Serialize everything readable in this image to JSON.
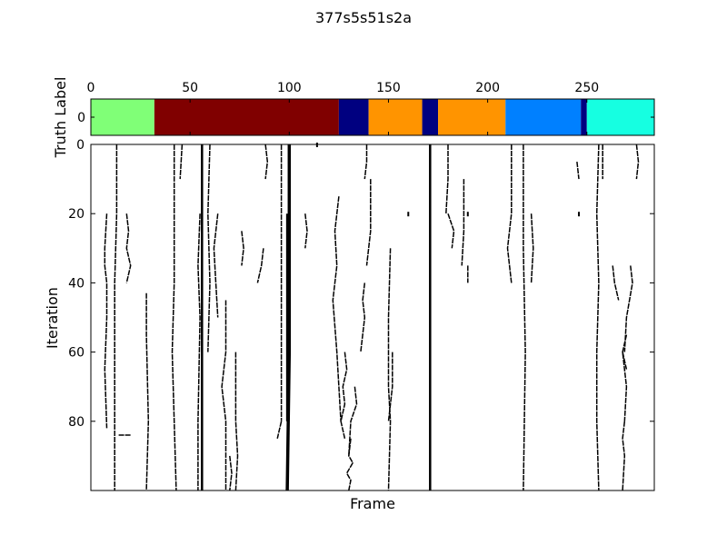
{
  "chart_data": [
    {
      "type": "bar",
      "title": "377s5s51s2a",
      "ylabel": "Truth Label",
      "xlim": [
        0,
        284
      ],
      "x_ticks": [
        0,
        50,
        100,
        150,
        200,
        250
      ],
      "y_ticks": [
        0
      ],
      "segments": [
        {
          "start": 0,
          "end": 32,
          "color": "#80ff77"
        },
        {
          "start": 32,
          "end": 125,
          "color": "#800000"
        },
        {
          "start": 125,
          "end": 140,
          "color": "#000080"
        },
        {
          "start": 140,
          "end": 167,
          "color": "#ff9400"
        },
        {
          "start": 167,
          "end": 175,
          "color": "#000080"
        },
        {
          "start": 175,
          "end": 209,
          "color": "#ff9400"
        },
        {
          "start": 209,
          "end": 247,
          "color": "#0080ff"
        },
        {
          "start": 247,
          "end": 250,
          "color": "#000080"
        },
        {
          "start": 250,
          "end": 284,
          "color": "#16ffe1"
        }
      ]
    },
    {
      "type": "heatmap",
      "xlabel": "Frame",
      "ylabel": "Iteration",
      "xlim": [
        0,
        284
      ],
      "ylim": [
        100,
        0
      ],
      "y_ticks": [
        0,
        20,
        40,
        60,
        80
      ],
      "traces": [
        {
          "x": [
            13,
            13,
            13,
            12,
            12,
            12,
            12,
            12
          ],
          "y": [
            0,
            15,
            20,
            40,
            60,
            80,
            85,
            100
          ],
          "w": 1
        },
        {
          "x": [
            8,
            7,
            7,
            8,
            8,
            7,
            8
          ],
          "y": [
            20,
            30,
            35,
            40,
            50,
            65,
            82
          ],
          "w": 1
        },
        {
          "x": [
            18,
            19,
            18,
            20,
            18
          ],
          "y": [
            20,
            25,
            30,
            35,
            40
          ],
          "w": 1
        },
        {
          "x": [
            14,
            20
          ],
          "y": [
            84,
            84
          ],
          "w": 1
        },
        {
          "x": [
            28,
            28,
            29,
            28
          ],
          "y": [
            43,
            55,
            80,
            100
          ],
          "w": 1
        },
        {
          "x": [
            42,
            42,
            42,
            41,
            42,
            43
          ],
          "y": [
            0,
            20,
            40,
            60,
            80,
            100
          ],
          "w": 1
        },
        {
          "x": [
            46,
            45
          ],
          "y": [
            0,
            10
          ],
          "w": 1
        },
        {
          "x": [
            56,
            56,
            56,
            56,
            56,
            56
          ],
          "y": [
            0,
            30,
            50,
            70,
            90,
            100
          ],
          "w": 2
        },
        {
          "x": [
            55,
            54,
            55,
            54,
            54
          ],
          "y": [
            20,
            35,
            50,
            80,
            100
          ],
          "w": 1
        },
        {
          "x": [
            60,
            59,
            60,
            59
          ],
          "y": [
            0,
            20,
            40,
            60
          ],
          "w": 1
        },
        {
          "x": [
            64,
            62,
            63,
            64
          ],
          "y": [
            20,
            30,
            40,
            50
          ],
          "w": 1
        },
        {
          "x": [
            68,
            68,
            66,
            68,
            68,
            68
          ],
          "y": [
            45,
            60,
            70,
            80,
            90,
            100
          ],
          "w": 1
        },
        {
          "x": [
            73,
            73,
            73,
            74,
            73
          ],
          "y": [
            60,
            70,
            80,
            90,
            100
          ],
          "w": 1
        },
        {
          "x": [
            70,
            71,
            70
          ],
          "y": [
            90,
            95,
            100
          ],
          "w": 1
        },
        {
          "x": [
            76,
            77,
            76
          ],
          "y": [
            25,
            30,
            35
          ],
          "w": 1
        },
        {
          "x": [
            88,
            89,
            88
          ],
          "y": [
            0,
            5,
            10
          ],
          "w": 1
        },
        {
          "x": [
            87,
            86,
            84
          ],
          "y": [
            30,
            35,
            40
          ],
          "w": 1
        },
        {
          "x": [
            96,
            96,
            96,
            96,
            96
          ],
          "y": [
            0,
            20,
            40,
            60,
            80
          ],
          "w": 1
        },
        {
          "x": [
            99,
            99,
            99,
            99
          ],
          "y": [
            20,
            40,
            60,
            80
          ],
          "w": 2
        },
        {
          "x": [
            100,
            100,
            100,
            99
          ],
          "y": [
            0,
            30,
            60,
            100
          ],
          "w": 3
        },
        {
          "x": [
            96,
            94
          ],
          "y": [
            80,
            85
          ],
          "w": 1
        },
        {
          "x": [
            108,
            109,
            108
          ],
          "y": [
            20,
            25,
            30
          ],
          "w": 1
        },
        {
          "x": [
            114
          ],
          "y": [
            0
          ],
          "w": 1
        },
        {
          "x": [
            125,
            123,
            124,
            122,
            124,
            126
          ],
          "y": [
            15,
            25,
            35,
            45,
            60,
            80
          ],
          "w": 1
        },
        {
          "x": [
            128,
            129,
            127,
            128,
            126,
            128
          ],
          "y": [
            60,
            65,
            70,
            75,
            80,
            85
          ],
          "w": 1
        },
        {
          "x": [
            131,
            130,
            132,
            129,
            131,
            130
          ],
          "y": [
            85,
            90,
            92,
            95,
            97,
            100
          ],
          "w": 1
        },
        {
          "x": [
            133,
            134,
            131,
            130
          ],
          "y": [
            70,
            75,
            80,
            90
          ],
          "w": 1
        },
        {
          "x": [
            138,
            137,
            138,
            137,
            136
          ],
          "y": [
            40,
            45,
            50,
            55,
            60
          ],
          "w": 1
        },
        {
          "x": [
            139,
            139,
            138
          ],
          "y": [
            0,
            5,
            10
          ],
          "w": 1
        },
        {
          "x": [
            141,
            141,
            139
          ],
          "y": [
            10,
            25,
            35
          ],
          "w": 1
        },
        {
          "x": [
            151,
            150,
            150,
            151,
            150
          ],
          "y": [
            30,
            50,
            70,
            80,
            100
          ],
          "w": 1
        },
        {
          "x": [
            152,
            152,
            150
          ],
          "y": [
            60,
            70,
            80
          ],
          "w": 1
        },
        {
          "x": [
            160
          ],
          "y": [
            20
          ],
          "w": 1
        },
        {
          "x": [
            171,
            171,
            171,
            171,
            171
          ],
          "y": [
            0,
            20,
            40,
            60,
            100
          ],
          "w": 2
        },
        {
          "x": [
            180,
            180,
            179
          ],
          "y": [
            0,
            10,
            20
          ],
          "w": 1
        },
        {
          "x": [
            180,
            183,
            182
          ],
          "y": [
            20,
            25,
            30
          ],
          "w": 1
        },
        {
          "x": [
            188,
            188,
            187
          ],
          "y": [
            10,
            25,
            35
          ],
          "w": 1
        },
        {
          "x": [
            190
          ],
          "y": [
            20
          ],
          "w": 1
        },
        {
          "x": [
            190,
            190
          ],
          "y": [
            35,
            40
          ],
          "w": 1
        },
        {
          "x": [
            212,
            212,
            210,
            212
          ],
          "y": [
            0,
            20,
            30,
            40
          ],
          "w": 1
        },
        {
          "x": [
            218,
            218,
            219,
            218
          ],
          "y": [
            0,
            30,
            60,
            100
          ],
          "w": 1
        },
        {
          "x": [
            222,
            223,
            222
          ],
          "y": [
            20,
            30,
            40
          ],
          "w": 1
        },
        {
          "x": [
            245,
            246
          ],
          "y": [
            5,
            10
          ],
          "w": 1
        },
        {
          "x": [
            246
          ],
          "y": [
            20
          ],
          "w": 1
        },
        {
          "x": [
            256,
            255,
            256,
            255,
            255,
            256
          ],
          "y": [
            0,
            20,
            40,
            60,
            80,
            100
          ],
          "w": 1
        },
        {
          "x": [
            258,
            258
          ],
          "y": [
            0,
            10
          ],
          "w": 1
        },
        {
          "x": [
            263,
            264,
            266
          ],
          "y": [
            35,
            40,
            45
          ],
          "w": 1
        },
        {
          "x": [
            270,
            268,
            270,
            269
          ],
          "y": [
            55,
            60,
            70,
            80
          ],
          "w": 1
        },
        {
          "x": [
            269,
            268,
            269,
            268
          ],
          "y": [
            80,
            85,
            90,
            100
          ],
          "w": 1
        },
        {
          "x": [
            272,
            273,
            270,
            269
          ],
          "y": [
            35,
            40,
            50,
            60
          ],
          "w": 1
        },
        {
          "x": [
            275,
            276,
            275
          ],
          "y": [
            0,
            5,
            10
          ],
          "w": 1
        },
        {
          "x": [
            268,
            270
          ],
          "y": [
            60,
            65
          ],
          "w": 1
        }
      ]
    }
  ]
}
